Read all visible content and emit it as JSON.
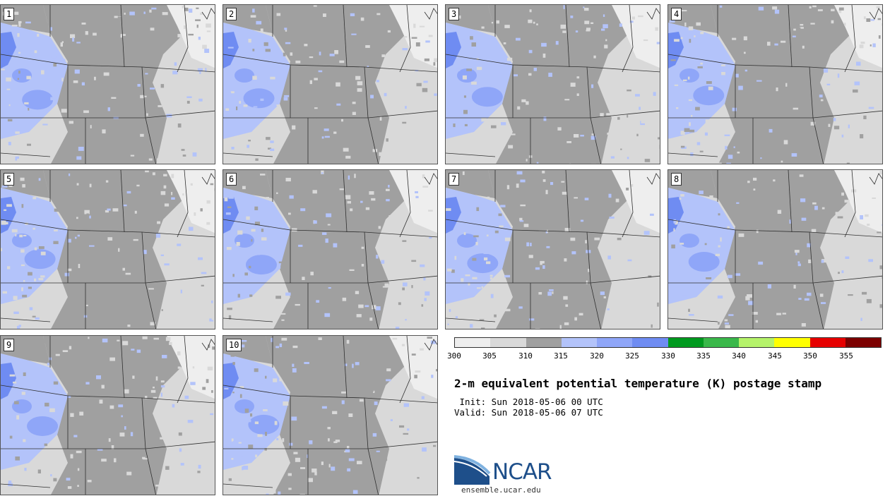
{
  "figure": {
    "title": "2-m equivalent potential temperature (K) postage stamp",
    "init_label": " Init: Sun 2018-05-06 00 UTC",
    "valid_label": "Valid: Sun 2018-05-06 07 UTC"
  },
  "members": [
    "1",
    "2",
    "3",
    "4",
    "5",
    "6",
    "7",
    "8",
    "9",
    "10"
  ],
  "colorbar": {
    "ticks": [
      "300",
      "305",
      "310",
      "315",
      "320",
      "325",
      "330",
      "335",
      "340",
      "345",
      "350",
      "355"
    ],
    "colors": [
      "#eeeeee",
      "#d9d9d9",
      "#a0a0a0",
      "#b3c3fa",
      "#8fa6f8",
      "#6f8cf2",
      "#009a1f",
      "#3ab84a",
      "#b5f36a",
      "#ffff00",
      "#e60000",
      "#7c0000"
    ]
  },
  "map_colors": {
    "bg": "#e4e4e4",
    "gray": "#a0a0a0",
    "light": "#d9d9d9",
    "pale": "#eeeeee",
    "blue": "#b3c3fa",
    "blue2": "#8fa6f8",
    "blue3": "#6f8cf2",
    "border": "#2f2f2f"
  },
  "logo": {
    "name": "NCAR",
    "url": "ensemble.ucar.edu"
  }
}
